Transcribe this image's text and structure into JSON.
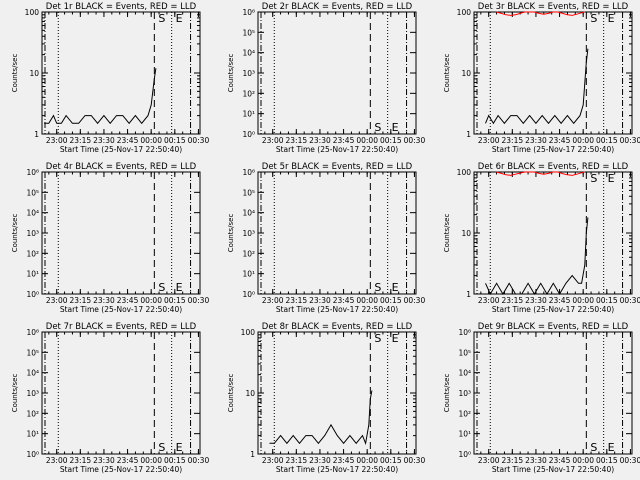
{
  "chart_data": [
    {
      "type": "line",
      "title": "Det 1r BLACK = Events, RED = LLD",
      "xlabel": "Start Time (25-Nov-17 22:50:40)",
      "ylabel": "Counts/sec",
      "yscale": "log",
      "ylim": [
        1,
        100
      ],
      "yticks": [
        {
          "v": 1,
          "label": "1"
        },
        {
          "v": 10,
          "label": "10"
        },
        {
          "v": 100,
          "label": "100"
        }
      ],
      "xlim": [
        "22:50:40",
        "00:31:00"
      ],
      "xticks": [
        "23:00",
        "23:15",
        "23:30",
        "23:45",
        "00:00",
        "00:15",
        "00:30"
      ],
      "markers": [
        {
          "label": "S",
          "time": "00:02"
        },
        {
          "label": "E",
          "time": "00:13"
        }
      ],
      "series": [
        {
          "color": "#000000",
          "x": [
            "22:52",
            "22:55",
            "22:58",
            "23:00",
            "23:03",
            "23:06",
            "23:10",
            "23:14",
            "23:18",
            "23:22",
            "23:26",
            "23:30",
            "23:34",
            "23:38",
            "23:42",
            "23:46",
            "23:50",
            "23:54",
            "23:58",
            "00:00",
            "00:02",
            "00:03"
          ],
          "y": [
            1.5,
            1.5,
            2,
            1.5,
            1.5,
            2,
            1.5,
            1.5,
            2,
            2,
            1.5,
            2,
            1.5,
            2,
            2,
            1.5,
            2,
            1.5,
            2,
            3,
            8,
            12
          ]
        }
      ]
    },
    {
      "type": "line",
      "title": "Det 2r BLACK = Events, RED = LLD",
      "xlabel": "Start Time (25-Nov-17 22:50:40)",
      "ylabel": "Counts/sec",
      "yscale": "log",
      "ylim": [
        1,
        1000000
      ],
      "yticks": [
        {
          "v": 1,
          "label": "10⁰"
        },
        {
          "v": 10,
          "label": "10¹"
        },
        {
          "v": 100,
          "label": "10²"
        },
        {
          "v": 1000,
          "label": "10³"
        },
        {
          "v": 10000,
          "label": "10⁴"
        },
        {
          "v": 100000,
          "label": "10⁵"
        },
        {
          "v": 1000000,
          "label": "10⁶"
        }
      ],
      "xlim": [
        "22:50:40",
        "00:31:00"
      ],
      "xticks": [
        "23:00",
        "23:15",
        "23:30",
        "23:45",
        "00:00",
        "00:15",
        "00:30"
      ],
      "markers": [
        {
          "label": "S",
          "time": "00:02"
        },
        {
          "label": "E",
          "time": "00:13"
        }
      ],
      "series": []
    },
    {
      "type": "line",
      "title": "Det 3r BLACK = Events, RED = LLD",
      "xlabel": "Start Time (25-Nov-17 22:50:40)",
      "ylabel": "Counts/sec",
      "yscale": "log",
      "ylim": [
        1,
        100
      ],
      "yticks": [
        {
          "v": 1,
          "label": "1"
        },
        {
          "v": 10,
          "label": "10"
        },
        {
          "v": 100,
          "label": "100"
        }
      ],
      "xlim": [
        "22:50:40",
        "00:31:00"
      ],
      "xticks": [
        "23:00",
        "23:15",
        "23:30",
        "23:45",
        "00:00",
        "00:15",
        "00:30"
      ],
      "markers": [
        {
          "label": "S",
          "time": "00:02"
        },
        {
          "label": "E",
          "time": "00:13"
        }
      ],
      "series": [
        {
          "color": "#ff0000",
          "x": [
            "23:05",
            "23:08",
            "23:11",
            "23:14",
            "23:17",
            "23:20",
            "23:23",
            "23:26",
            "23:29",
            "23:32",
            "23:35",
            "23:38",
            "23:41",
            "23:44",
            "23:47",
            "23:50",
            "23:53",
            "23:56",
            "23:59",
            "00:01"
          ],
          "y": [
            100,
            95,
            90,
            88,
            90,
            95,
            100,
            105,
            100,
            95,
            92,
            95,
            100,
            100,
            95,
            90,
            88,
            92,
            97,
            100
          ]
        },
        {
          "color": "#000000",
          "x": [
            "22:58",
            "23:00",
            "23:03",
            "23:06",
            "23:10",
            "23:14",
            "23:18",
            "23:22",
            "23:26",
            "23:30",
            "23:34",
            "23:38",
            "23:42",
            "23:46",
            "23:50",
            "23:54",
            "23:58",
            "00:00",
            "00:02",
            "00:03"
          ],
          "y": [
            1.5,
            2,
            1.5,
            2,
            1.5,
            2,
            2,
            1.5,
            2,
            1.5,
            2,
            1.5,
            2,
            1.5,
            2,
            1.5,
            2,
            3,
            15,
            25
          ]
        }
      ]
    },
    {
      "type": "line",
      "title": "Det 4r BLACK = Events, RED = LLD",
      "xlabel": "Start Time (25-Nov-17 22:50:40)",
      "ylabel": "Counts/sec",
      "yscale": "log",
      "ylim": [
        1,
        1000000
      ],
      "yticks": [
        {
          "v": 1,
          "label": "10⁰"
        },
        {
          "v": 10,
          "label": "10¹"
        },
        {
          "v": 100,
          "label": "10²"
        },
        {
          "v": 1000,
          "label": "10³"
        },
        {
          "v": 10000,
          "label": "10⁴"
        },
        {
          "v": 100000,
          "label": "10⁵"
        },
        {
          "v": 1000000,
          "label": "10⁶"
        }
      ],
      "xlim": [
        "22:50:40",
        "00:31:00"
      ],
      "xticks": [
        "23:00",
        "23:15",
        "23:30",
        "23:45",
        "00:00",
        "00:15",
        "00:30"
      ],
      "markers": [
        {
          "label": "S",
          "time": "00:02"
        },
        {
          "label": "E",
          "time": "00:13"
        }
      ],
      "series": []
    },
    {
      "type": "line",
      "title": "Det 5r BLACK = Events, RED = LLD",
      "xlabel": "Start Time (25-Nov-17 22:50:40)",
      "ylabel": "Counts/sec",
      "yscale": "log",
      "ylim": [
        1,
        1000000
      ],
      "yticks": [
        {
          "v": 1,
          "label": "10⁰"
        },
        {
          "v": 10,
          "label": "10¹"
        },
        {
          "v": 100,
          "label": "10²"
        },
        {
          "v": 1000,
          "label": "10³"
        },
        {
          "v": 10000,
          "label": "10⁴"
        },
        {
          "v": 100000,
          "label": "10⁵"
        },
        {
          "v": 1000000,
          "label": "10⁶"
        }
      ],
      "xlim": [
        "22:50:40",
        "00:31:00"
      ],
      "xticks": [
        "23:00",
        "23:15",
        "23:30",
        "23:45",
        "00:00",
        "00:15",
        "00:30"
      ],
      "markers": [
        {
          "label": "S",
          "time": "00:02"
        },
        {
          "label": "E",
          "time": "00:13"
        }
      ],
      "series": []
    },
    {
      "type": "line",
      "title": "Det 6r BLACK = Events, RED = LLD",
      "xlabel": "Start Time (25-Nov-17 22:50:40)",
      "ylabel": "Counts/sec",
      "yscale": "log",
      "ylim": [
        1,
        100
      ],
      "yticks": [
        {
          "v": 1,
          "label": "1"
        },
        {
          "v": 10,
          "label": "10"
        },
        {
          "v": 100,
          "label": "100"
        }
      ],
      "xlim": [
        "22:50:40",
        "00:31:00"
      ],
      "xticks": [
        "23:00",
        "23:15",
        "23:30",
        "23:45",
        "00:00",
        "00:15",
        "00:30"
      ],
      "markers": [
        {
          "label": "S",
          "time": "00:02"
        },
        {
          "label": "E",
          "time": "00:13"
        }
      ],
      "series": [
        {
          "color": "#ff0000",
          "x": [
            "23:05",
            "23:08",
            "23:11",
            "23:14",
            "23:17",
            "23:20",
            "23:23",
            "23:26",
            "23:29",
            "23:32",
            "23:35",
            "23:38",
            "23:41",
            "23:44",
            "23:47",
            "23:50",
            "23:53",
            "23:56",
            "23:59",
            "00:01"
          ],
          "y": [
            100,
            95,
            90,
            88,
            92,
            96,
            100,
            104,
            100,
            95,
            92,
            95,
            100,
            100,
            94,
            90,
            88,
            92,
            97,
            100
          ]
        },
        {
          "color": "#000000",
          "x": [
            "22:58",
            "23:01",
            "23:05",
            "23:09",
            "23:13",
            "23:17",
            "23:21",
            "23:25",
            "23:29",
            "23:33",
            "23:37",
            "23:41",
            "23:45",
            "23:49",
            "23:53",
            "23:57",
            "23:59",
            "00:01",
            "00:02",
            "00:03"
          ],
          "y": [
            1.5,
            1,
            1.5,
            1,
            1.5,
            1,
            1,
            1.5,
            1,
            1.5,
            1,
            1.5,
            1,
            1.5,
            2,
            1.5,
            1.5,
            3,
            10,
            18
          ]
        }
      ]
    },
    {
      "type": "line",
      "title": "Det 7r BLACK = Events, RED = LLD",
      "xlabel": "Start Time (25-Nov-17 22:50:40)",
      "ylabel": "Counts/sec",
      "yscale": "log",
      "ylim": [
        1,
        1000000
      ],
      "yticks": [
        {
          "v": 1,
          "label": "10⁰"
        },
        {
          "v": 10,
          "label": "10¹"
        },
        {
          "v": 100,
          "label": "10²"
        },
        {
          "v": 1000,
          "label": "10³"
        },
        {
          "v": 10000,
          "label": "10⁴"
        },
        {
          "v": 100000,
          "label": "10⁵"
        },
        {
          "v": 1000000,
          "label": "10⁶"
        }
      ],
      "xlim": [
        "22:50:40",
        "00:31:00"
      ],
      "xticks": [
        "23:00",
        "23:15",
        "23:30",
        "23:45",
        "00:00",
        "00:15",
        "00:30"
      ],
      "markers": [
        {
          "label": "S",
          "time": "00:02"
        },
        {
          "label": "E",
          "time": "00:13"
        }
      ],
      "series": []
    },
    {
      "type": "line",
      "title": "Det 8r BLACK = Events, RED = LLD",
      "xlabel": "Start Time (25-Nov-17 22:50:40)",
      "ylabel": "Counts/sec",
      "yscale": "log",
      "ylim": [
        1,
        100
      ],
      "yticks": [
        {
          "v": 1,
          "label": "1"
        },
        {
          "v": 10,
          "label": "10"
        },
        {
          "v": 100,
          "label": "100"
        }
      ],
      "xlim": [
        "22:50:40",
        "00:31:00"
      ],
      "xticks": [
        "23:00",
        "23:15",
        "23:30",
        "23:45",
        "00:00",
        "00:15",
        "00:30"
      ],
      "markers": [
        {
          "label": "S",
          "time": "00:02"
        },
        {
          "label": "E",
          "time": "00:13"
        }
      ],
      "series": [
        {
          "color": "#000000",
          "x": [
            "22:58",
            "23:01",
            "23:05",
            "23:09",
            "23:13",
            "23:17",
            "23:21",
            "23:25",
            "23:29",
            "23:33",
            "23:37",
            "23:41",
            "23:45",
            "23:49",
            "23:53",
            "23:57",
            "23:59",
            "00:01",
            "00:02",
            "00:03"
          ],
          "y": [
            1.5,
            1.5,
            2,
            1.5,
            2,
            1.5,
            2,
            2,
            1.5,
            2,
            3,
            2,
            1.5,
            2,
            1.5,
            2,
            1.5,
            3,
            8,
            11
          ]
        }
      ]
    },
    {
      "type": "line",
      "title": "Det 9r BLACK = Events, RED = LLD",
      "xlabel": "Start Time (25-Nov-17 22:50:40)",
      "ylabel": "Counts/sec",
      "yscale": "log",
      "ylim": [
        1,
        1000000
      ],
      "yticks": [
        {
          "v": 1,
          "label": "10⁰"
        },
        {
          "v": 10,
          "label": "10¹"
        },
        {
          "v": 100,
          "label": "10²"
        },
        {
          "v": 1000,
          "label": "10³"
        },
        {
          "v": 10000,
          "label": "10⁴"
        },
        {
          "v": 100000,
          "label": "10⁵"
        },
        {
          "v": 1000000,
          "label": "10⁶"
        }
      ],
      "xlim": [
        "22:50:40",
        "00:31:00"
      ],
      "xticks": [
        "23:00",
        "23:15",
        "23:30",
        "23:45",
        "00:00",
        "00:15",
        "00:30"
      ],
      "markers": [
        {
          "label": "S",
          "time": "00:02"
        },
        {
          "label": "E",
          "time": "00:13"
        }
      ],
      "series": []
    }
  ]
}
